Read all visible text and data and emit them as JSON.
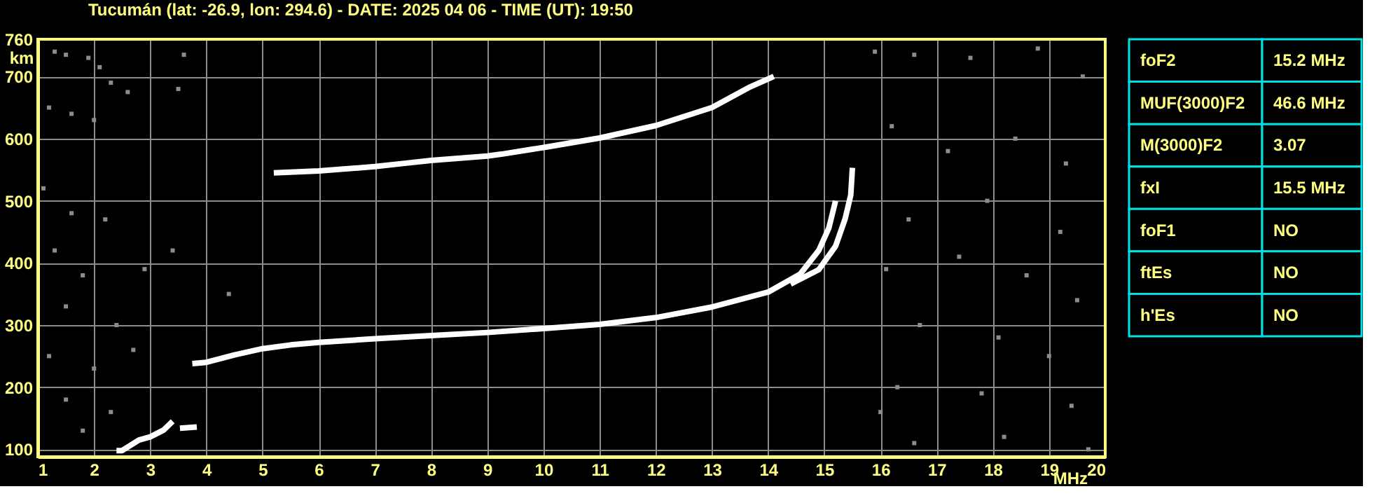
{
  "chart_data": [
    {
      "type": "line",
      "title": "Tucumán (lat: -26.9, lon: 294.6) - DATE: 2025 04 06 - TIME (UT): 19:50",
      "xlabel": "MHz",
      "ylabel": "km",
      "xlim": [
        1,
        20
      ],
      "ylim": [
        88,
        760
      ],
      "xticks": [
        1,
        2,
        3,
        4,
        5,
        6,
        7,
        8,
        9,
        10,
        11,
        12,
        13,
        14,
        15,
        16,
        17,
        18,
        19,
        20
      ],
      "yticks": [
        100,
        200,
        300,
        400,
        500,
        600,
        700,
        760
      ],
      "grid": true,
      "marker": "none",
      "line_style": "solid",
      "series": [
        {
          "type": "line",
          "color": "#ffffff",
          "x": [
            3.75,
            4,
            4.5,
            5,
            5.5,
            6,
            7,
            8,
            9,
            10.08,
            11,
            12,
            13,
            14,
            14.57,
            14.9,
            15.08,
            15.2
          ],
          "values": [
            238,
            240,
            252,
            262,
            268,
            272,
            278,
            283,
            288,
            295,
            301,
            312,
            329,
            353,
            382,
            420,
            456,
            500
          ]
        },
        {
          "type": "line",
          "color": "#ffffff",
          "x": [
            14.4,
            14.9,
            15.2,
            15.37,
            15.47,
            15.5
          ],
          "values": [
            366,
            389,
            427,
            471,
            509,
            553
          ]
        },
        {
          "type": "line",
          "color": "#ffffff",
          "x": [
            5.2,
            6,
            7,
            7.5,
            8,
            9,
            9.25,
            10.08,
            11,
            12,
            13,
            13.65,
            14.1
          ],
          "values": [
            545,
            548,
            555,
            560,
            565,
            572,
            575,
            587,
            601,
            621,
            650,
            682,
            700
          ]
        },
        {
          "type": "line",
          "color": "#ffffff",
          "x": [
            2.4,
            2.5,
            2.8,
            3.0,
            3.24,
            3.4,
            3.45,
            3.53,
            3.83
          ],
          "values": [
            98,
            98,
            115,
            120,
            131,
            145,
            null,
            134,
            136
          ]
        },
        {
          "type": "scatter",
          "marker": "square",
          "color": "#8c8c8c",
          "x": [
            1.3,
            1.5,
            1.9,
            2.1,
            2.3,
            2.6,
            1.2,
            1.6,
            2.0,
            1.1,
            1.6,
            2.2,
            1.3,
            1.8,
            2.9,
            1.5,
            2.4,
            1.2,
            2.0,
            2.7,
            1.5,
            2.3,
            1.8,
            3.4,
            3.6,
            3.5,
            4.4,
            15.9,
            16.6,
            17.6,
            18.8,
            19.6,
            16.2,
            17.2,
            18.4,
            19.3,
            16.5,
            17.9,
            19.2,
            16.1,
            17.4,
            18.6,
            19.5,
            16.7,
            18.1,
            19.0,
            16.3,
            17.8,
            19.4,
            16.6,
            18.2,
            19.7,
            16.0
          ],
          "values": [
            740,
            735,
            730,
            715,
            690,
            675,
            650,
            640,
            630,
            520,
            480,
            470,
            420,
            380,
            390,
            330,
            300,
            250,
            230,
            260,
            180,
            160,
            130,
            420,
            735,
            680,
            350,
            740,
            735,
            730,
            745,
            700,
            620,
            580,
            600,
            560,
            470,
            500,
            450,
            390,
            410,
            380,
            340,
            300,
            280,
            250,
            200,
            190,
            170,
            110,
            120,
            100,
            160
          ]
        }
      ]
    },
    {
      "type": "other",
      "annotations": [
        "foF2",
        "15.2 MHz",
        "MUF(3000)F2",
        "46.6 MHz",
        "M(3000)F2",
        "3.07",
        "fxI",
        "15.5 MHz",
        "foF1",
        "NO",
        "ftEs",
        "NO",
        "h'Es",
        "NO"
      ]
    }
  ]
}
